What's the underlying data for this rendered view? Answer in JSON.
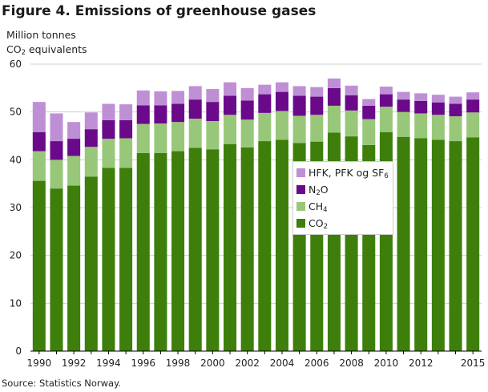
{
  "chart_data": {
    "type": "bar",
    "stacked": true,
    "title": "Figure 4. Emissions of greenhouse gases",
    "ylabel_line1": "Million tonnes",
    "ylabel_line2_prefix": "CO",
    "ylabel_line2_sub": "2",
    "ylabel_line2_suffix": " equivalents",
    "ylim": [
      0,
      60
    ],
    "yticks": [
      0,
      10,
      20,
      30,
      40,
      50,
      60
    ],
    "categories": [
      1990,
      1991,
      1992,
      1993,
      1994,
      1995,
      1996,
      1997,
      1998,
      1999,
      2000,
      2001,
      2002,
      2003,
      2004,
      2005,
      2006,
      2007,
      2008,
      2009,
      2010,
      2011,
      2012,
      2013,
      2014,
      2015
    ],
    "xtick_labels": [
      "1990",
      "1992",
      "1994",
      "1996",
      "1998",
      "2000",
      "2002",
      "2004",
      "2006",
      "2008",
      "2010",
      "2012",
      "2015"
    ],
    "grid": "horizontal",
    "legend_position": "center-right, over bars",
    "series": [
      {
        "name": "CO2",
        "name_base": "CO",
        "name_sub": "2",
        "color": "#3d7f0a",
        "values": [
          35.6,
          34.0,
          34.6,
          36.5,
          38.3,
          38.3,
          41.4,
          41.4,
          41.8,
          42.5,
          42.2,
          43.3,
          42.6,
          43.9,
          44.2,
          43.5,
          43.8,
          45.7,
          44.9,
          43.1,
          45.8,
          44.8,
          44.5,
          44.2,
          43.9,
          44.7
        ]
      },
      {
        "name": "CH4",
        "name_base": "CH",
        "name_sub": "4",
        "color": "#99c779",
        "values": [
          6.2,
          6.0,
          6.2,
          6.2,
          6.1,
          6.2,
          6.1,
          6.2,
          6.1,
          6.1,
          5.9,
          6.1,
          5.8,
          5.9,
          6.0,
          5.7,
          5.6,
          5.6,
          5.4,
          5.4,
          5.3,
          5.2,
          5.2,
          5.2,
          5.2,
          5.2
        ]
      },
      {
        "name": "N2O",
        "name_base": "N",
        "name_sub": "2",
        "name_suffix": "O",
        "color": "#6a0a8a",
        "values": [
          4.0,
          3.9,
          3.6,
          3.7,
          3.9,
          3.8,
          3.9,
          3.8,
          3.8,
          4.0,
          4.0,
          4.0,
          4.0,
          3.9,
          4.0,
          4.2,
          3.8,
          3.7,
          3.2,
          2.8,
          2.6,
          2.6,
          2.6,
          2.6,
          2.6,
          2.7
        ]
      },
      {
        "name": "HFK, PFK og SF6",
        "name_base": "HFK, PFK og SF",
        "name_sub": "6",
        "color": "#bf8fd6",
        "values": [
          6.3,
          5.8,
          3.5,
          3.5,
          3.4,
          3.3,
          3.1,
          2.9,
          2.7,
          2.8,
          2.7,
          2.8,
          2.6,
          2.0,
          2.0,
          2.0,
          2.0,
          2.0,
          2.0,
          1.4,
          1.6,
          1.6,
          1.6,
          1.6,
          1.5,
          1.5
        ]
      }
    ],
    "legend_order": [
      "HFK, PFK og SF6",
      "N2O",
      "CH4",
      "CO2"
    ]
  },
  "source": "Source: Statistics Norway."
}
